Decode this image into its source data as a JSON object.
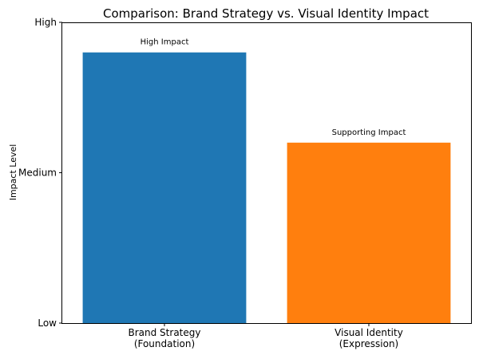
{
  "chart_data": {
    "type": "bar",
    "title": "Comparison: Brand Strategy vs. Visual Identity Impact",
    "xlabel": "",
    "ylabel": "Impact Level",
    "ylim": [
      0,
      10
    ],
    "y_ticks": [
      {
        "value": 0,
        "label": "Low"
      },
      {
        "value": 5,
        "label": "Medium"
      },
      {
        "value": 10,
        "label": "High"
      }
    ],
    "categories": [
      "Brand Strategy\n(Foundation)",
      "Visual Identity\n(Expression)"
    ],
    "values": [
      9,
      6
    ],
    "data_labels": [
      "High Impact",
      "Supporting Impact"
    ],
    "colors": [
      "#1f77b4",
      "#ff7f0e"
    ],
    "grid": false,
    "legend": "none"
  }
}
